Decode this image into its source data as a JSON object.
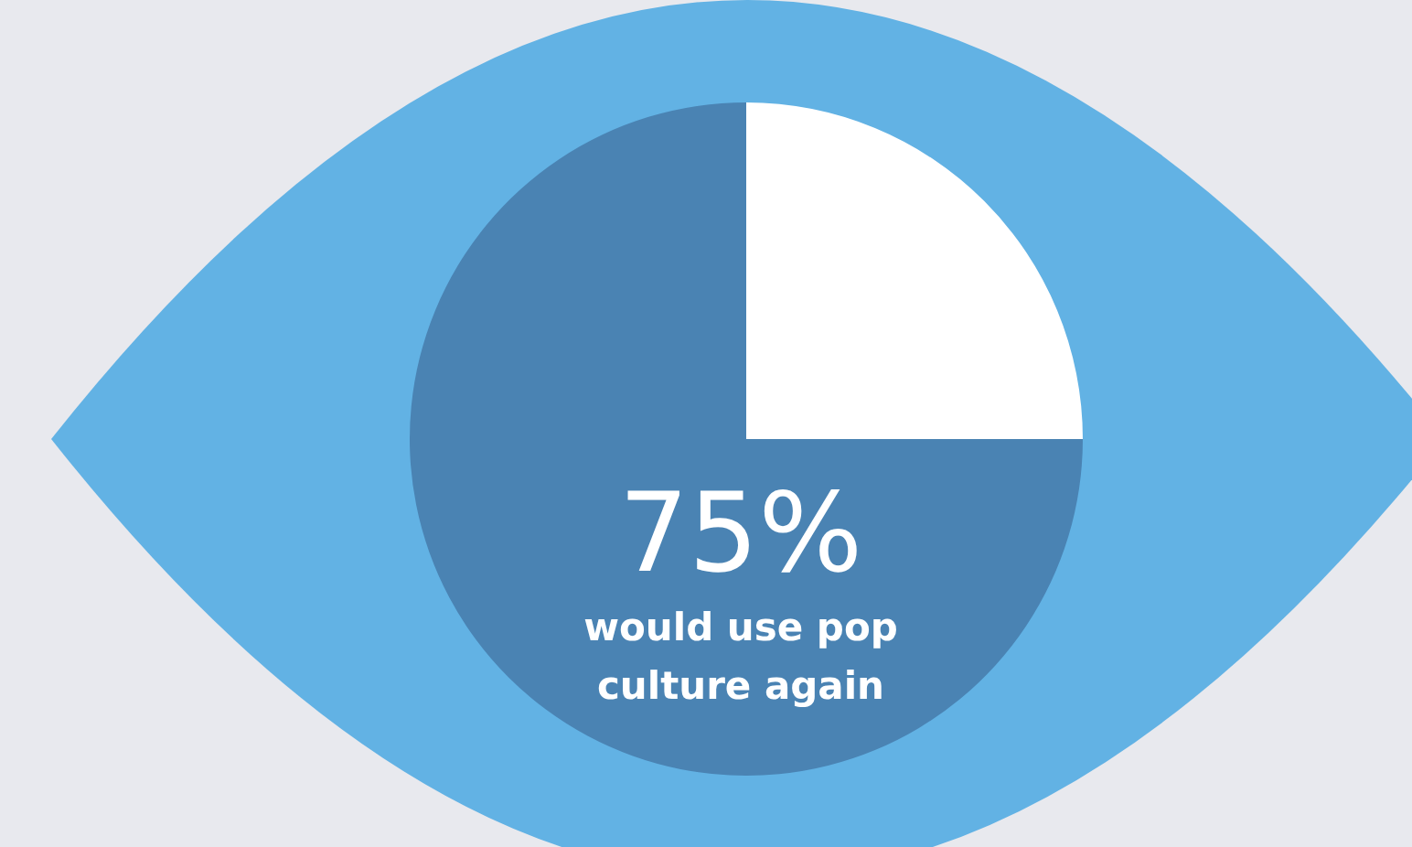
{
  "chart_data": {
    "type": "pie",
    "categories": [
      null,
      null
    ],
    "values": [
      25,
      75
    ],
    "colors": [
      "#ffffff",
      "#4a83b3"
    ],
    "value_labels": [
      null,
      "75%"
    ],
    "annotations": [
      "would use pop culture again"
    ],
    "legend": false
  }
}
